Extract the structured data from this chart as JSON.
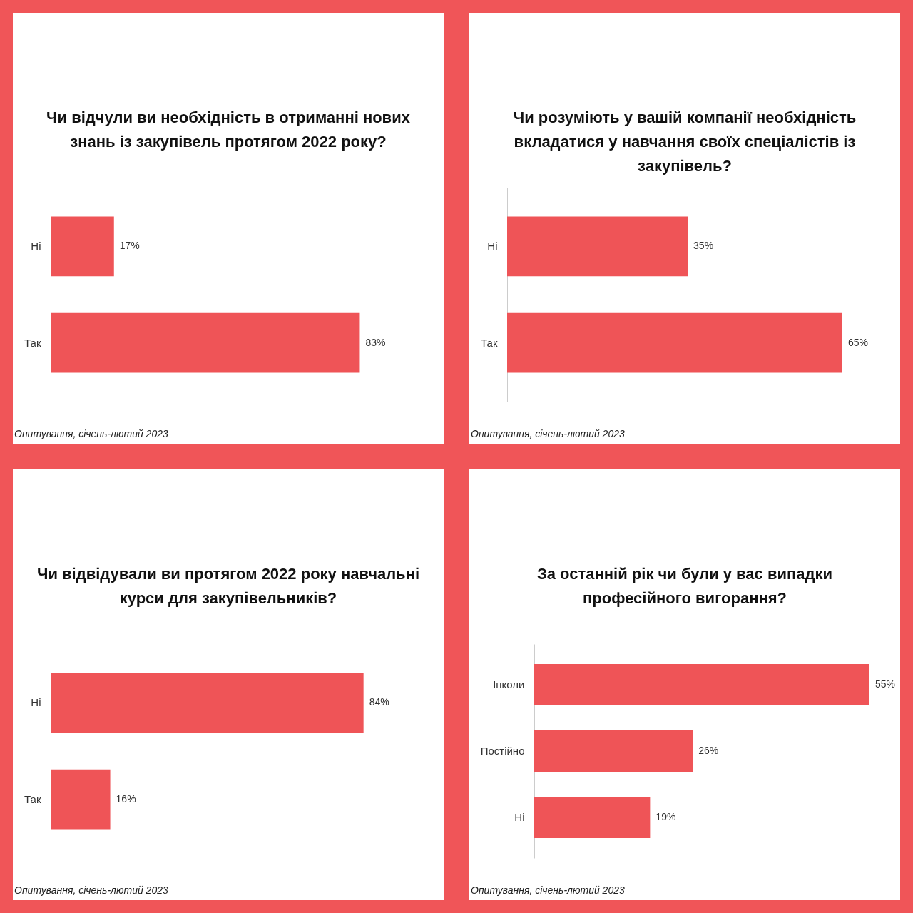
{
  "chart_data": [
    {
      "type": "bar",
      "orientation": "horizontal",
      "title": "Чи відчули ви необхідність в отриманні нових знань із закупівель протягом 2022 року?",
      "categories": [
        "Ні",
        "Так"
      ],
      "values": [
        17,
        83
      ],
      "color": "#ef5457",
      "value_labels": [
        "17%",
        "83%"
      ],
      "tick_labels": "y",
      "annotations": [
        "Опитування, січень-лютий 2023"
      ]
    },
    {
      "type": "bar",
      "orientation": "horizontal",
      "title": "Чи розуміють у вашій компанії необхідність вкладатися у навчання своїх спеціалістів із закупівель?",
      "categories": [
        "Ні",
        "Так"
      ],
      "values": [
        35,
        65
      ],
      "color": "#ef5457",
      "value_labels": [
        "35%",
        "65%"
      ],
      "tick_labels": "y",
      "annotations": [
        "Опитування, січень-лютий 2023"
      ]
    },
    {
      "type": "bar",
      "orientation": "horizontal",
      "title": "Чи відвідували ви протягом 2022 року навчальні курси для закупівельників?",
      "categories": [
        "Ні",
        "Так"
      ],
      "values": [
        84,
        16
      ],
      "color": "#ef5457",
      "value_labels": [
        "84%",
        "16%"
      ],
      "tick_labels": "y",
      "annotations": [
        "Опитування, січень-лютий 2023"
      ]
    },
    {
      "type": "bar",
      "orientation": "horizontal",
      "title": "За останній рік чи були у вас випадки професійного вигорання?",
      "categories": [
        "Інколи",
        "Постійно",
        "Ні"
      ],
      "values": [
        55,
        26,
        19
      ],
      "color": "#ef5457",
      "value_labels": [
        "55%",
        "26%",
        "19%"
      ],
      "tick_labels": "y",
      "annotations": [
        "Опитування, січень-лютий 2023"
      ]
    }
  ]
}
